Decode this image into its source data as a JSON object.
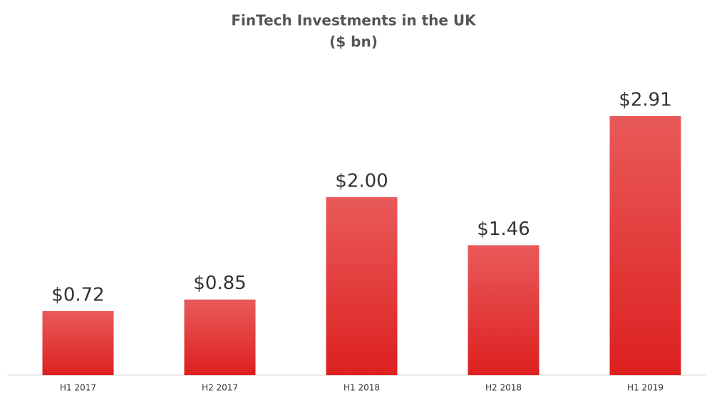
{
  "chart_data": {
    "type": "bar",
    "title": "FinTech Investments in the UK",
    "subtitle": "($ bn)",
    "categories": [
      "H1 2017",
      "H2 2017",
      "H1 2018",
      "H2 2018",
      "H1 2019"
    ],
    "values": [
      0.72,
      0.85,
      2.0,
      1.46,
      2.91
    ],
    "value_labels": [
      "$0.72",
      "$0.85",
      "$2.00",
      "$1.46",
      "$2.91"
    ],
    "color": "#e23a3a"
  }
}
